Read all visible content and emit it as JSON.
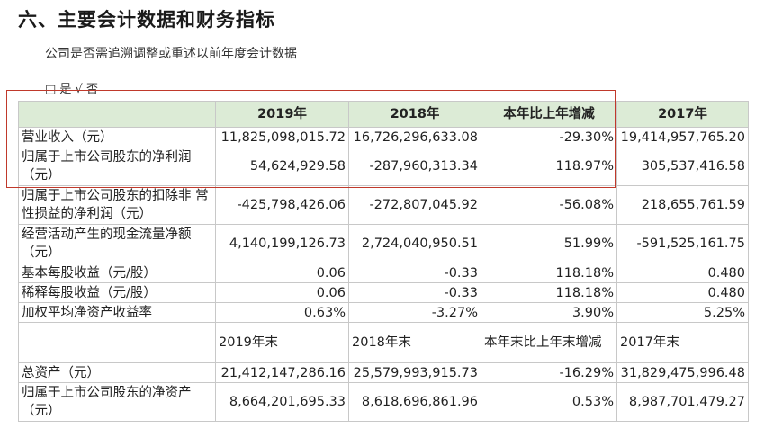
{
  "section_title": "六、主要会计数据和财务指标",
  "intro": "公司是否需追溯调整或重述以前年度会计数据",
  "answer": "□ 是 √ 否",
  "header1": [
    "",
    "2019年",
    "2018年",
    "本年比上年增减",
    "2017年"
  ],
  "rows1": [
    {
      "label": "营业收入（元）",
      "v2019": "11,825,098,015.72",
      "v2018": "16,726,296,633.08",
      "change": "-29.30%",
      "v2017": "19,414,957,765.20"
    },
    {
      "label": "归属于上市公司股东的净利润（元）",
      "v2019": "54,624,929.58",
      "v2018": "-287,960,313.34",
      "change": "118.97%",
      "v2017": "305,537,416.58"
    },
    {
      "label": "归属于上市公司股东的扣除非 常性损益的净利润（元）",
      "v2019": "-425,798,426.06",
      "v2018": "-272,807,045.92",
      "change": "-56.08%",
      "v2017": "218,655,761.59"
    },
    {
      "label": "经营活动产生的现金流量净额（元）",
      "v2019": "4,140,199,126.73",
      "v2018": "2,724,040,950.51",
      "change": "51.99%",
      "v2017": "-591,525,161.75"
    },
    {
      "label": "基本每股收益（元/股）",
      "v2019": "0.06",
      "v2018": "-0.33",
      "change": "118.18%",
      "v2017": "0.480"
    },
    {
      "label": "稀释每股收益（元/股）",
      "v2019": "0.06",
      "v2018": "-0.33",
      "change": "118.18%",
      "v2017": "0.480"
    },
    {
      "label": "加权平均净资产收益率",
      "v2019": "0.63%",
      "v2018": "-3.27%",
      "change": "3.90%",
      "v2017": "5.25%"
    }
  ],
  "header2": [
    "",
    "2019年末",
    "2018年末",
    "本年末比上年末增减",
    "2017年末"
  ],
  "rows2": [
    {
      "label": "总资产（元）",
      "v2019": "21,412,147,286.16",
      "v2018": "25,579,993,915.73",
      "change": "-16.29%",
      "v2017": "31,829,475,996.48"
    },
    {
      "label": "归属于上市公司股东的净资产（元）",
      "v2019": "8,664,201,695.33",
      "v2018": "8,618,696,861.96",
      "change": "0.53%",
      "v2017": "8,987,701,479.27"
    }
  ]
}
